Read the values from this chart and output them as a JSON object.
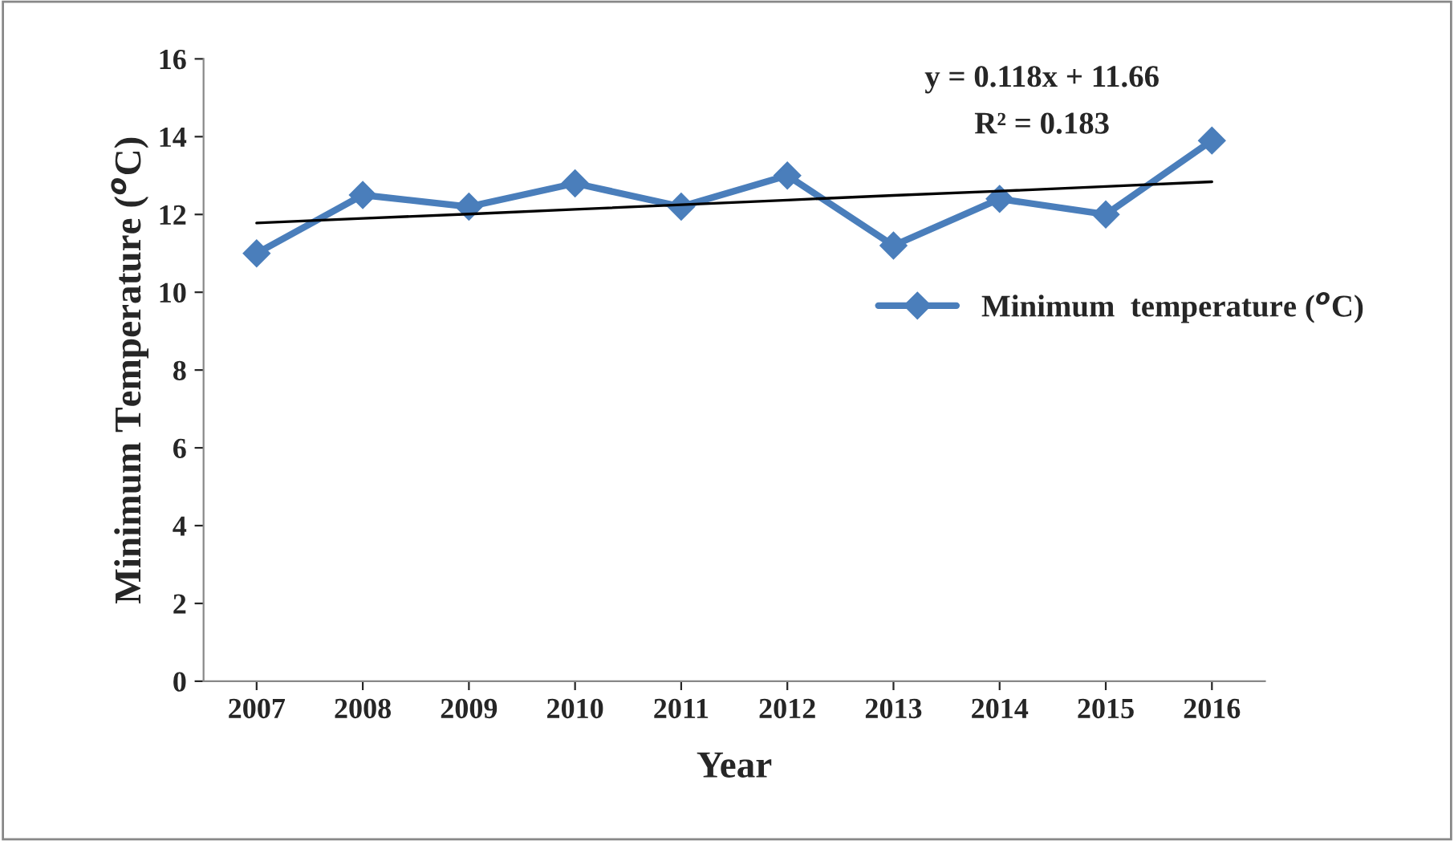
{
  "chart_data": {
    "type": "line",
    "xlabel": "Year",
    "ylabel": "Minimum Temperature ($^{o}$C)",
    "categories": [
      "2007",
      "2008",
      "2009",
      "2010",
      "2011",
      "2012",
      "2013",
      "2014",
      "2015",
      "2016"
    ],
    "series": [
      {
        "name": "Minimum  temperature ($^{o}$C)",
        "color": "#4a7ebb",
        "values": [
          11.0,
          12.5,
          12.2,
          12.8,
          12.2,
          13.0,
          11.2,
          12.4,
          12.0,
          13.9
        ],
        "marker": "diamond"
      },
      {
        "type": "line",
        "color": "#000000",
        "values": [
          11.78,
          11.9,
          12.01,
          12.13,
          12.25,
          12.37,
          12.49,
          12.6,
          12.72,
          12.84
        ],
        "marker": "none"
      }
    ],
    "annotations": [
      "y = 0.118x + 11.66",
      "R² = 0.183"
    ],
    "ylim": [
      0,
      16
    ],
    "yticks": [
      0,
      2,
      4,
      6,
      8,
      10,
      12,
      14,
      16
    ],
    "grid": false,
    "legend": "right",
    "line_style": "solid"
  }
}
